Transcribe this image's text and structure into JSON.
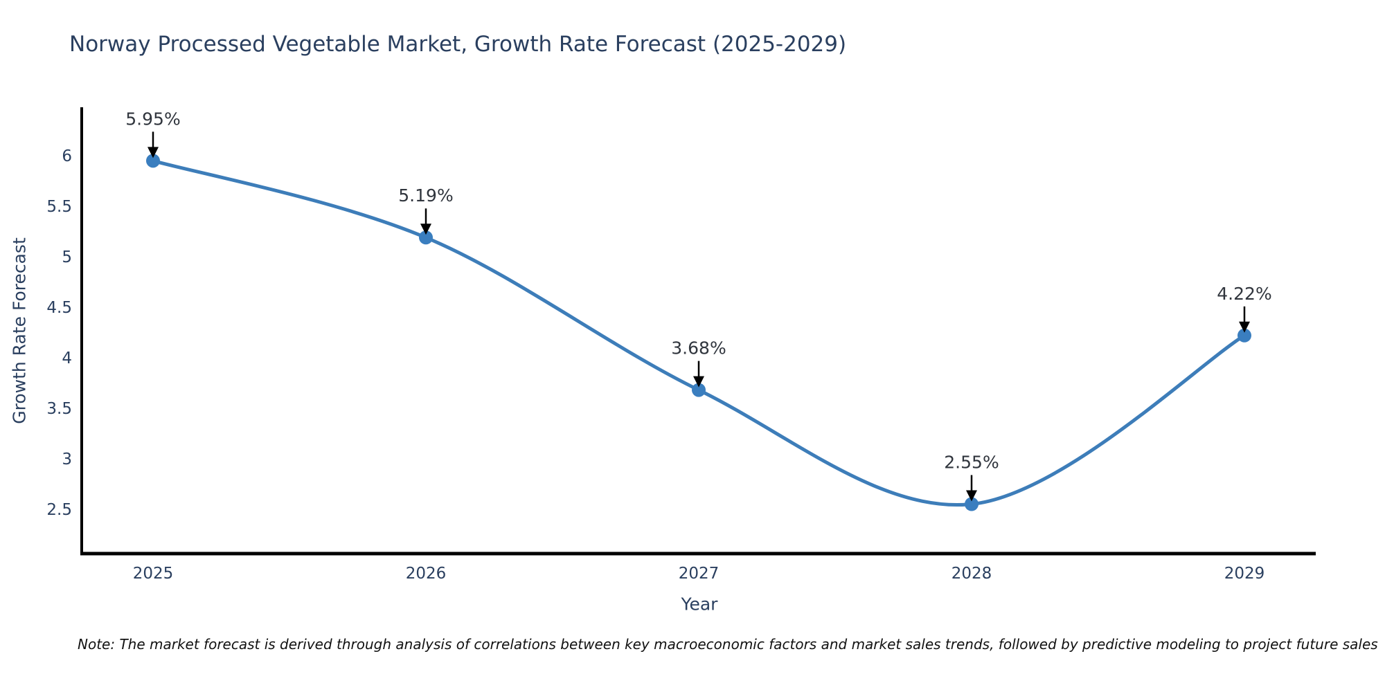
{
  "chart_data": {
    "type": "line",
    "title": "Norway Processed Vegetable Market, Growth Rate Forecast (2025-2029)",
    "xlabel": "Year",
    "ylabel": "Growth Rate Forecast",
    "categories": [
      "2025",
      "2026",
      "2027",
      "2028",
      "2029"
    ],
    "values": [
      5.95,
      5.19,
      3.68,
      2.55,
      4.22
    ],
    "point_labels": [
      "5.95%",
      "5.19%",
      "3.68%",
      "2.55%",
      "4.22%"
    ],
    "ytick_labels": [
      "6",
      "5.5",
      "5",
      "4.5",
      "4",
      "3.5",
      "3",
      "2.5"
    ],
    "ytick_values": [
      6,
      5.5,
      5,
      4.5,
      4,
      3.5,
      3,
      2.5
    ],
    "ylim": [
      2.06,
      6.48
    ],
    "grid": false,
    "legend": false,
    "curve": "spline",
    "line_color": "#3d7db9",
    "marker_color": "#3a7ebf",
    "axis_color": "#000000",
    "arrow_color": "#000000",
    "tick_color": "#2a3f5f",
    "annotation_color": "#30353d"
  },
  "footnote": "Note: The market forecast is derived through analysis of correlations between key macroeconomic factors and market sales trends, followed by predictive modeling to project future sales"
}
